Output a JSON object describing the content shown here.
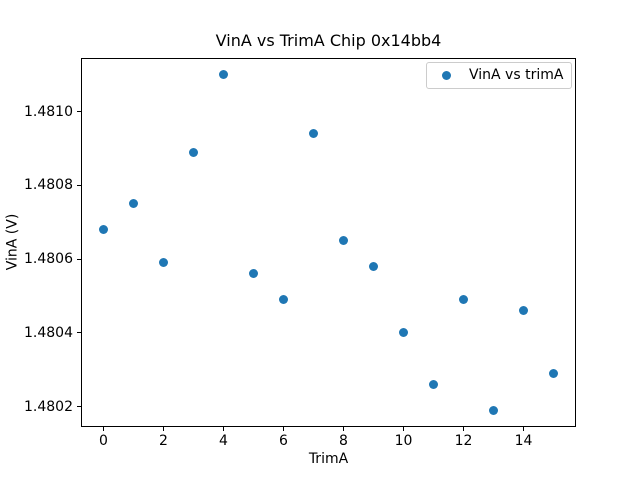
{
  "chart_data": {
    "type": "scatter",
    "title": "VinA vs TrimA Chip 0x14bb4",
    "xlabel": "TrimA",
    "ylabel": "VinA (V)",
    "legend": {
      "position": "upper right",
      "entries": [
        "VinA vs trimA"
      ]
    },
    "marker_color": "#1f77b4",
    "grid": false,
    "x": [
      0,
      1,
      2,
      3,
      4,
      5,
      6,
      7,
      8,
      9,
      10,
      11,
      12,
      13,
      14,
      15
    ],
    "y": [
      1.48068,
      1.48075,
      1.48059,
      1.48089,
      1.4811,
      1.48056,
      1.48049,
      1.48094,
      1.48065,
      1.48058,
      1.4804,
      1.48026,
      1.48049,
      1.48019,
      1.48046,
      1.48029
    ],
    "xlim": [
      -0.75,
      15.75
    ],
    "ylim": [
      1.480145,
      1.481145
    ],
    "xticks": [
      0,
      2,
      4,
      6,
      8,
      10,
      12,
      14
    ],
    "xtick_labels": [
      "0",
      "2",
      "4",
      "6",
      "8",
      "10",
      "12",
      "14"
    ],
    "yticks": [
      1.4802,
      1.4804,
      1.4806,
      1.4808,
      1.481
    ],
    "ytick_labels": [
      "1.4802",
      "1.4804",
      "1.4806",
      "1.4808",
      "1.4810"
    ]
  }
}
